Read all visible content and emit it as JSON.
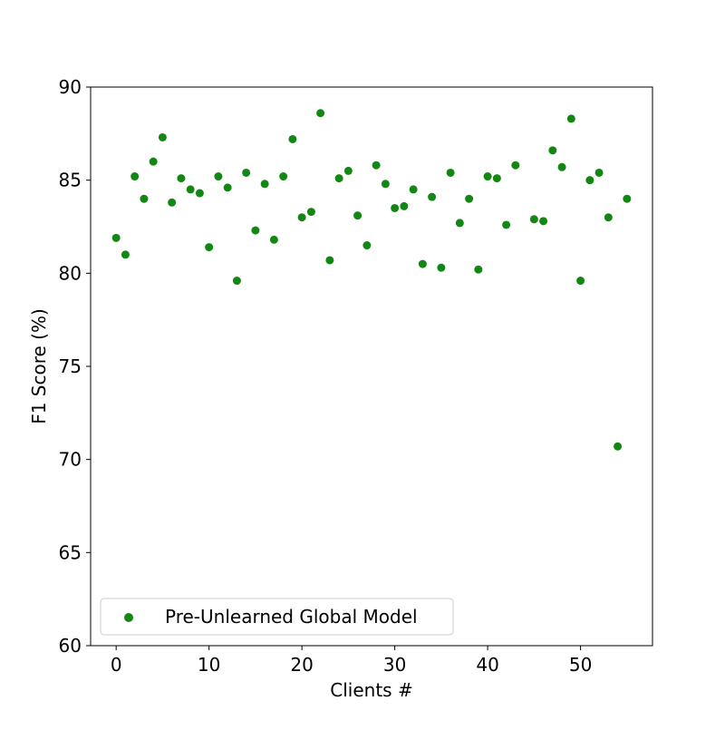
{
  "chart_data": {
    "type": "scatter",
    "title": "",
    "xlabel": "Clients #",
    "ylabel": "F1 Score (%)",
    "xlim": [
      -2.75,
      57.75
    ],
    "ylim": [
      60,
      90
    ],
    "xticks": [
      0,
      10,
      20,
      30,
      40,
      50
    ],
    "yticks": [
      60,
      65,
      70,
      75,
      80,
      85,
      90
    ],
    "grid": false,
    "legend_position": "lower-left",
    "series": [
      {
        "name": "Pre-Unlearned Global Model",
        "color": "#138713",
        "points": [
          {
            "x": 0,
            "y": 81.9
          },
          {
            "x": 1,
            "y": 81.0
          },
          {
            "x": 2,
            "y": 85.2
          },
          {
            "x": 3,
            "y": 84.0
          },
          {
            "x": 4,
            "y": 86.0
          },
          {
            "x": 5,
            "y": 87.3
          },
          {
            "x": 6,
            "y": 83.8
          },
          {
            "x": 7,
            "y": 85.1
          },
          {
            "x": 8,
            "y": 84.5
          },
          {
            "x": 9,
            "y": 84.3
          },
          {
            "x": 10,
            "y": 81.4
          },
          {
            "x": 11,
            "y": 85.2
          },
          {
            "x": 12,
            "y": 84.6
          },
          {
            "x": 13,
            "y": 79.6
          },
          {
            "x": 14,
            "y": 85.4
          },
          {
            "x": 15,
            "y": 82.3
          },
          {
            "x": 16,
            "y": 84.8
          },
          {
            "x": 17,
            "y": 81.8
          },
          {
            "x": 18,
            "y": 85.2
          },
          {
            "x": 19,
            "y": 87.2
          },
          {
            "x": 20,
            "y": 83.0
          },
          {
            "x": 21,
            "y": 83.3
          },
          {
            "x": 22,
            "y": 88.6
          },
          {
            "x": 23,
            "y": 80.7
          },
          {
            "x": 24,
            "y": 85.1
          },
          {
            "x": 25,
            "y": 85.5
          },
          {
            "x": 26,
            "y": 83.1
          },
          {
            "x": 27,
            "y": 81.5
          },
          {
            "x": 28,
            "y": 85.8
          },
          {
            "x": 29,
            "y": 84.8
          },
          {
            "x": 30,
            "y": 83.5
          },
          {
            "x": 31,
            "y": 83.6
          },
          {
            "x": 32,
            "y": 84.5
          },
          {
            "x": 33,
            "y": 80.5
          },
          {
            "x": 34,
            "y": 84.1
          },
          {
            "x": 35,
            "y": 80.3
          },
          {
            "x": 36,
            "y": 85.4
          },
          {
            "x": 37,
            "y": 82.7
          },
          {
            "x": 38,
            "y": 84.0
          },
          {
            "x": 39,
            "y": 80.2
          },
          {
            "x": 40,
            "y": 85.2
          },
          {
            "x": 41,
            "y": 85.1
          },
          {
            "x": 42,
            "y": 82.6
          },
          {
            "x": 43,
            "y": 85.8
          },
          {
            "x": 45,
            "y": 82.9
          },
          {
            "x": 46,
            "y": 82.8
          },
          {
            "x": 47,
            "y": 86.6
          },
          {
            "x": 48,
            "y": 85.7
          },
          {
            "x": 49,
            "y": 88.3
          },
          {
            "x": 50,
            "y": 79.6
          },
          {
            "x": 51,
            "y": 85.0
          },
          {
            "x": 52,
            "y": 85.4
          },
          {
            "x": 53,
            "y": 83.0
          },
          {
            "x": 54,
            "y": 70.7
          },
          {
            "x": 55,
            "y": 84.0
          }
        ]
      }
    ]
  }
}
